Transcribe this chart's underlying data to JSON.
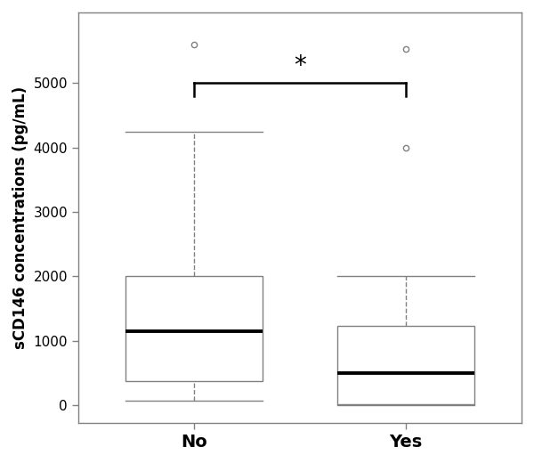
{
  "groups": [
    "No",
    "Yes"
  ],
  "no": {
    "whisker_low": 70,
    "q1": 380,
    "median": 1150,
    "q3": 2000,
    "whisker_high": 4250,
    "outliers": [
      5600
    ]
  },
  "yes": {
    "whisker_low": 0,
    "q1": 10,
    "median": 500,
    "q3": 1230,
    "whisker_high": 2000,
    "outliers": [
      4000,
      5530
    ]
  },
  "ylim": [
    -280,
    6100
  ],
  "yticks": [
    0,
    1000,
    2000,
    3000,
    4000,
    5000
  ],
  "ylabel": "sCD146 concentrations (pg/mL)",
  "sig_y": 5000,
  "sig_tick_down": 200,
  "sig_label": "*",
  "box_width": 0.65,
  "positions": [
    1,
    2
  ],
  "xlim": [
    0.45,
    2.55
  ],
  "bg_color": "#ffffff",
  "box_color": "#ffffff",
  "median_color": "#000000",
  "whisker_color": "#808080",
  "cap_color": "#808080",
  "outlier_color": "#808080",
  "box_edge_color": "#808080",
  "axes_color": "#808080",
  "tick_color": "#000000",
  "label_color": "#000000"
}
